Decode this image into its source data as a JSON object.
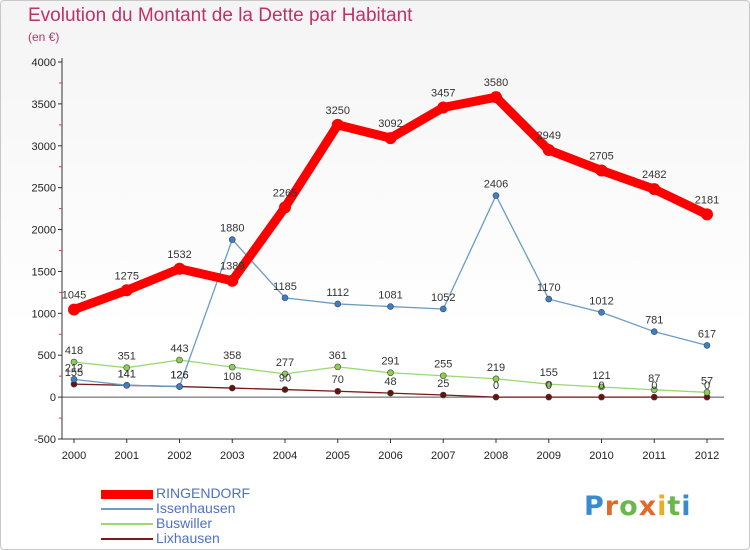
{
  "title": "Evolution du Montant de la Dette par Habitant",
  "subtitle": "(en €)",
  "logo": {
    "text": "Proxiti"
  },
  "chart_data": {
    "type": "line",
    "x": [
      "2000",
      "2001",
      "2002",
      "2003",
      "2004",
      "2005",
      "2006",
      "2007",
      "2008",
      "2009",
      "2010",
      "2011",
      "2012"
    ],
    "ylim": [
      -500,
      4000
    ],
    "yticks": [
      -500,
      0,
      500,
      1000,
      1500,
      2000,
      2500,
      3000,
      3500,
      4000
    ],
    "grid": false,
    "legend_position": "bottom-left",
    "series": [
      {
        "name": "RINGENDORF",
        "color": "#ff0000",
        "point_color": "#ff0000",
        "values": [
          1045,
          1275,
          1532,
          1389,
          2265,
          3250,
          3092,
          3457,
          3580,
          2949,
          2705,
          2482,
          2181
        ]
      },
      {
        "name": "Issenhausen",
        "color": "#6a9cc8",
        "point_color": "#3a80c8",
        "values": [
          212,
          141,
          126,
          1880,
          1185,
          1112,
          1081,
          1052,
          2406,
          1170,
          1012,
          781,
          617
        ]
      },
      {
        "name": "Buswiller",
        "color": "#9ad870",
        "point_color": "#8ad050",
        "values": [
          418,
          351,
          443,
          358,
          277,
          361,
          291,
          255,
          219,
          155,
          121,
          87,
          57
        ]
      },
      {
        "name": "Lixhausen",
        "color": "#7a1a1a",
        "point_color": "#6a1010",
        "values": [
          155,
          141,
          126,
          108,
          90,
          70,
          48,
          25,
          0,
          0,
          0,
          0,
          0
        ]
      }
    ]
  }
}
